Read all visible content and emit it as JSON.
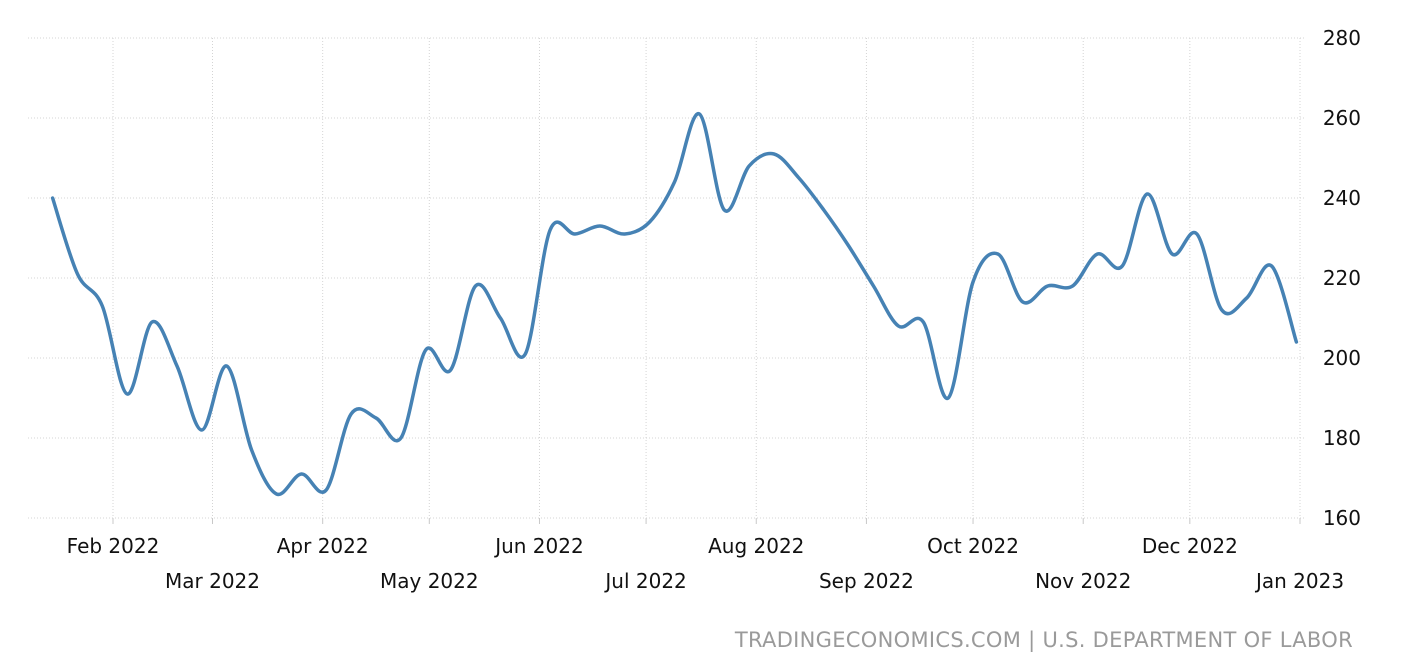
{
  "chart_data": {
    "type": "line",
    "title": "",
    "xlabel": "",
    "ylabel": "",
    "ylim": [
      160,
      280
    ],
    "yticks": [
      160,
      180,
      200,
      220,
      240,
      260,
      280
    ],
    "y_axis_side": "right",
    "grid": true,
    "legend": "none",
    "x_tick_labels": [
      "Feb 2022",
      "Mar 2022",
      "Apr 2022",
      "May 2022",
      "Jun 2022",
      "Jul 2022",
      "Aug 2022",
      "Sep 2022",
      "Oct 2022",
      "Nov 2022",
      "Dec 2022",
      "Jan 2023"
    ],
    "x_tick_dates": [
      "2022-02-01",
      "2022-03-01",
      "2022-04-01",
      "2022-05-01",
      "2022-06-01",
      "2022-07-01",
      "2022-08-01",
      "2022-09-01",
      "2022-10-01",
      "2022-11-01",
      "2022-12-01",
      "2023-01-01"
    ],
    "series": [
      {
        "name": "",
        "color": "#4682b4",
        "points": [
          [
            "2022-01-15",
            240
          ],
          [
            "2022-01-22",
            221
          ],
          [
            "2022-01-29",
            213
          ],
          [
            "2022-02-05",
            191
          ],
          [
            "2022-02-12",
            209
          ],
          [
            "2022-02-19",
            198
          ],
          [
            "2022-02-26",
            182
          ],
          [
            "2022-03-05",
            198
          ],
          [
            "2022-03-12",
            177
          ],
          [
            "2022-03-19",
            166
          ],
          [
            "2022-03-26",
            171
          ],
          [
            "2022-04-02",
            167
          ],
          [
            "2022-04-09",
            186
          ],
          [
            "2022-04-16",
            185
          ],
          [
            "2022-04-23",
            180
          ],
          [
            "2022-04-30",
            202
          ],
          [
            "2022-05-07",
            197
          ],
          [
            "2022-05-14",
            218
          ],
          [
            "2022-05-21",
            210
          ],
          [
            "2022-05-28",
            201
          ],
          [
            "2022-06-04",
            232
          ],
          [
            "2022-06-11",
            231
          ],
          [
            "2022-06-18",
            233
          ],
          [
            "2022-06-25",
            231
          ],
          [
            "2022-07-02",
            234
          ],
          [
            "2022-07-09",
            244
          ],
          [
            "2022-07-16",
            261
          ],
          [
            "2022-07-23",
            237
          ],
          [
            "2022-07-30",
            248
          ],
          [
            "2022-08-06",
            251
          ],
          [
            "2022-08-13",
            245
          ],
          [
            "2022-08-20",
            237
          ],
          [
            "2022-08-27",
            228
          ],
          [
            "2022-09-03",
            218
          ],
          [
            "2022-09-10",
            208
          ],
          [
            "2022-09-17",
            209
          ],
          [
            "2022-09-24",
            190
          ],
          [
            "2022-10-01",
            219
          ],
          [
            "2022-10-08",
            226
          ],
          [
            "2022-10-15",
            214
          ],
          [
            "2022-10-22",
            218
          ],
          [
            "2022-10-29",
            218
          ],
          [
            "2022-11-05",
            226
          ],
          [
            "2022-11-12",
            223
          ],
          [
            "2022-11-19",
            241
          ],
          [
            "2022-11-26",
            226
          ],
          [
            "2022-12-03",
            231
          ],
          [
            "2022-12-10",
            212
          ],
          [
            "2022-12-17",
            215
          ],
          [
            "2022-12-24",
            223
          ],
          [
            "2022-12-31",
            204
          ]
        ]
      }
    ]
  },
  "source_text": "TRADINGECONOMICS.COM | U.S. DEPARTMENT OF LABOR"
}
